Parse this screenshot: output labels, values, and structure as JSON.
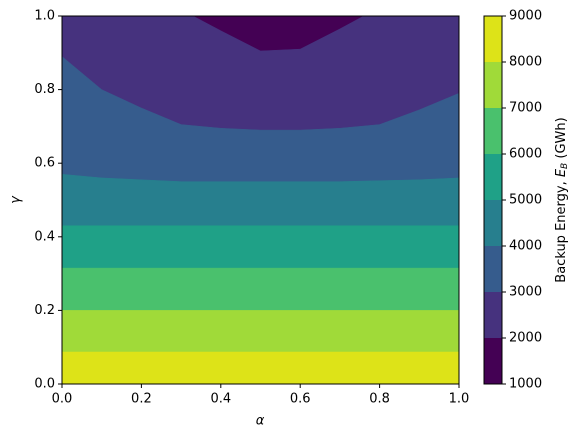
{
  "chart_data": {
    "type": "contour",
    "xlabel": "α",
    "ylabel": "γ",
    "xlim": [
      0,
      1
    ],
    "ylim": [
      0,
      1
    ],
    "xticks": [
      {
        "value": 0,
        "label": "0.0"
      },
      {
        "value": 0.2,
        "label": "0.2"
      },
      {
        "value": 0.4,
        "label": "0.4"
      },
      {
        "value": 0.6,
        "label": "0.6"
      },
      {
        "value": 0.8,
        "label": "0.8"
      },
      {
        "value": 1,
        "label": "1.0"
      }
    ],
    "yticks": [
      {
        "value": 0,
        "label": "0.0"
      },
      {
        "value": 0.2,
        "label": "0.2"
      },
      {
        "value": 0.4,
        "label": "0.4"
      },
      {
        "value": 0.6,
        "label": "0.6"
      },
      {
        "value": 0.8,
        "label": "0.8"
      },
      {
        "value": 1,
        "label": "1.0"
      }
    ],
    "colorbar": {
      "label": [
        "Backup Energy, ",
        "E",
        "B",
        " (GWh)"
      ],
      "levels": [
        1000,
        2000,
        3000,
        4000,
        5000,
        6000,
        7000,
        8000,
        9000
      ],
      "colors": [
        "#440154",
        "#46327e",
        "#365c8d",
        "#277f8e",
        "#1fa187",
        "#4ac16d",
        "#a0da39",
        "#dde318"
      ]
    },
    "contours": [
      {
        "x": [
          0.33,
          0.4,
          0.5,
          0.6,
          0.7,
          0.76
        ],
        "y": [
          1,
          0.96,
          0.905,
          0.91,
          0.965,
          1
        ]
      },
      {
        "x": [
          0,
          0.1,
          0.2,
          0.3,
          0.4,
          0.5,
          0.6,
          0.7,
          0.8,
          0.9,
          1
        ],
        "y": [
          0.89,
          0.8,
          0.75,
          0.705,
          0.695,
          0.69,
          0.69,
          0.695,
          0.705,
          0.745,
          0.79
        ]
      },
      {
        "x": [
          0,
          0.1,
          0.3,
          0.5,
          0.7,
          0.9,
          1
        ],
        "y": [
          0.57,
          0.56,
          0.55,
          0.55,
          0.55,
          0.555,
          0.56
        ]
      },
      {
        "x": [
          0,
          1
        ],
        "y": [
          0.43,
          0.43
        ]
      },
      {
        "x": [
          0,
          1
        ],
        "y": [
          0.315,
          0.315
        ]
      },
      {
        "x": [
          0,
          1
        ],
        "y": [
          0.2,
          0.2
        ]
      },
      {
        "x": [
          0,
          1
        ],
        "y": [
          0.087,
          0.087
        ]
      }
    ]
  }
}
